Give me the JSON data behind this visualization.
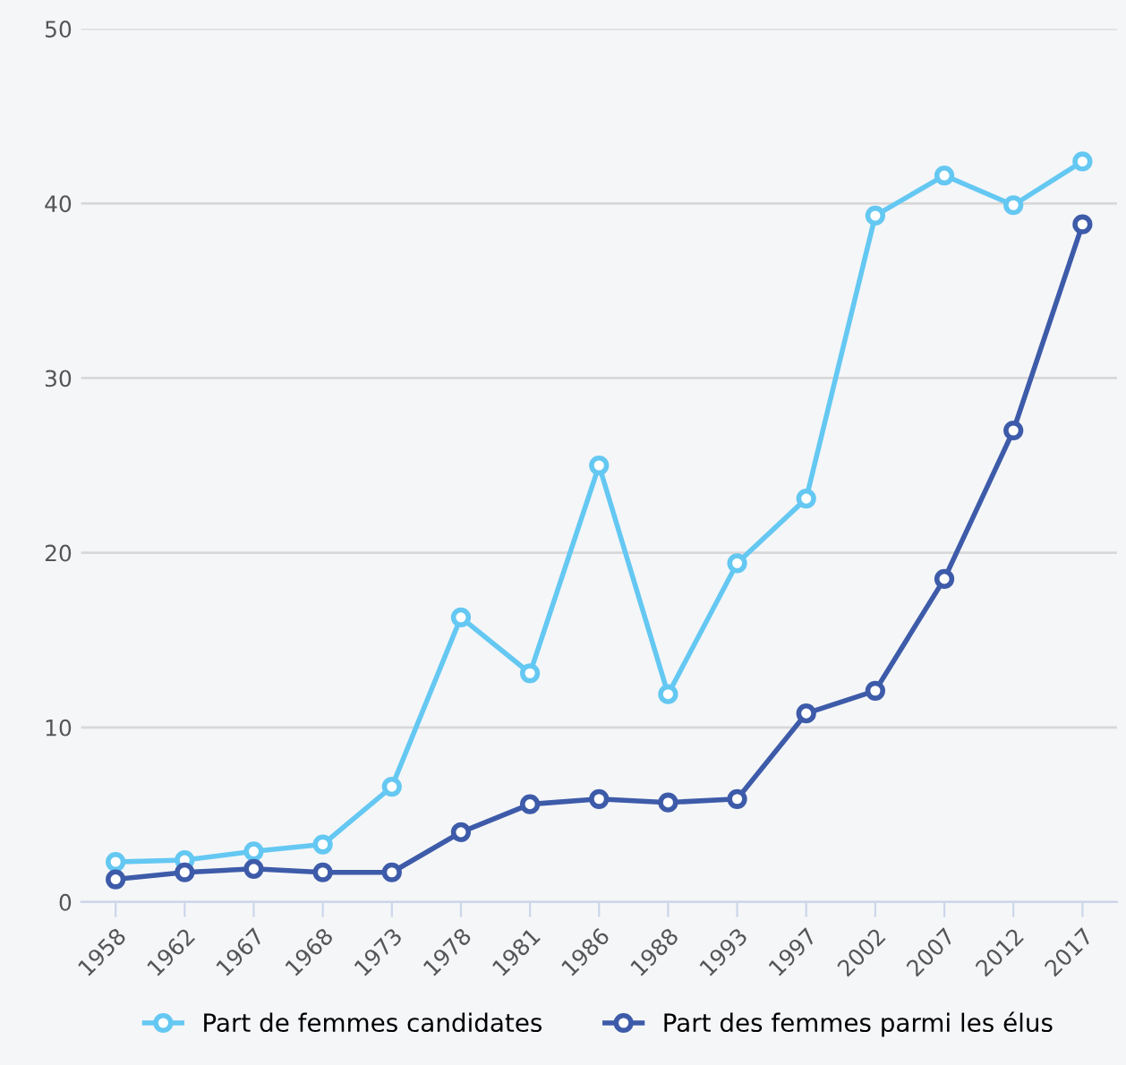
{
  "chart_data": {
    "type": "line",
    "categories": [
      "1958",
      "1962",
      "1967",
      "1968",
      "1973",
      "1978",
      "1981",
      "1986",
      "1988",
      "1993",
      "1997",
      "2002",
      "2007",
      "2012",
      "2017"
    ],
    "series": [
      {
        "name": "Part de femmes candidates",
        "color": "#64c8f2",
        "values": [
          2.3,
          2.4,
          2.9,
          3.3,
          6.6,
          16.3,
          13.1,
          25.0,
          11.9,
          19.4,
          23.1,
          39.3,
          41.6,
          39.9,
          42.4
        ]
      },
      {
        "name": "Part des femmes parmi les élus",
        "color": "#3d5ba9",
        "values": [
          1.3,
          1.7,
          1.9,
          1.7,
          1.7,
          4.0,
          5.6,
          5.9,
          5.7,
          5.9,
          10.8,
          12.1,
          18.5,
          27.0,
          38.8
        ]
      }
    ],
    "ylim": [
      0,
      50
    ],
    "yticks": [
      0,
      10,
      20,
      30,
      40,
      50
    ],
    "grid": "y",
    "legend": "bottom",
    "marker": "circle",
    "line_style": "solid"
  }
}
